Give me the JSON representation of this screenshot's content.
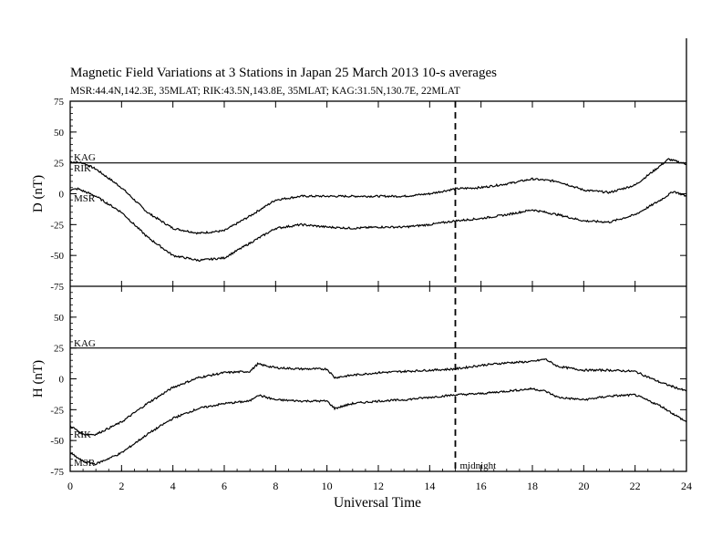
{
  "title": "Magnetic Field Variations at 3 Stations in Japan        25 March   2013      10-s averages",
  "subtitle": "MSR:44.4N,142.3E, 35MLAT;  RIK:43.5N,143.8E, 35MLAT;  KAG:31.5N,130.7E, 22MLAT",
  "chart_data": {
    "type": "line",
    "xlabel": "Universal Time",
    "xlim": [
      0,
      24
    ],
    "xticks": [
      "0",
      "2",
      "4",
      "6",
      "8",
      "10",
      "12",
      "14",
      "16",
      "18",
      "20",
      "22",
      "24"
    ],
    "annotation": {
      "x": 15,
      "label": "midnight"
    },
    "panels": [
      {
        "ylabel": "D (nT)",
        "ylim": [
          -75,
          75
        ],
        "yticks": [
          "75",
          "50",
          "25",
          "0",
          "-25",
          "-50",
          "-75"
        ],
        "series": [
          {
            "name": "KAG",
            "x": [
              0,
              23,
              23.5,
              24
            ],
            "y": [
              25,
              25,
              25,
              25
            ]
          },
          {
            "name": "RIK",
            "x": [
              0,
              0.5,
              1,
              2,
              3,
              4,
              5,
              6,
              7,
              8,
              9,
              10,
              11,
              12,
              13,
              14,
              15,
              16,
              17,
              18,
              19,
              20,
              21,
              22,
              23,
              23.3,
              24
            ],
            "y": [
              26,
              25,
              20,
              5,
              -15,
              -28,
              -32,
              -30,
              -18,
              -5,
              -2,
              -2,
              -2,
              -2,
              -2,
              0,
              4,
              5,
              8,
              12,
              10,
              3,
              1,
              7,
              23,
              28,
              24
            ]
          },
          {
            "name": "MSR",
            "x": [
              0,
              0.3,
              1,
              2,
              3,
              4,
              5,
              6,
              7,
              8,
              9,
              10,
              11,
              12,
              13,
              14,
              15,
              16,
              17,
              18,
              19,
              20,
              21,
              22,
              23,
              23.5,
              24
            ],
            "y": [
              3,
              4,
              -2,
              -15,
              -35,
              -50,
              -54,
              -52,
              -40,
              -28,
              -25,
              -27,
              -28,
              -27,
              -27,
              -25,
              -22,
              -20,
              -17,
              -13,
              -17,
              -22,
              -23,
              -17,
              -5,
              2,
              -2
            ]
          }
        ]
      },
      {
        "ylabel": "H (nT)",
        "ylim": [
          -75,
          75
        ],
        "yticks": [
          "75",
          "50",
          "25",
          "0",
          "-25",
          "-50",
          "-75"
        ],
        "series": [
          {
            "name": "KAG",
            "x": [
              0,
              24
            ],
            "y": [
              25,
              25
            ]
          },
          {
            "name": "RIK",
            "x": [
              0,
              0.5,
              1,
              2,
              3,
              4,
              5,
              6,
              7,
              7.3,
              8,
              9,
              10,
              10.3,
              11,
              12,
              13,
              14,
              15,
              16,
              17,
              18,
              18.5,
              19,
              20,
              21,
              22,
              23,
              24
            ],
            "y": [
              -38,
              -45,
              -45,
              -35,
              -20,
              -7,
              1,
              5,
              6,
              12,
              9,
              8,
              8,
              1,
              3,
              5,
              6,
              7,
              8,
              11,
              13,
              14,
              16,
              10,
              7,
              7,
              6,
              -3,
              -10
            ]
          },
          {
            "name": "MSR",
            "x": [
              0,
              0.5,
              1,
              2,
              3,
              4,
              5,
              6,
              7,
              7.3,
              8,
              9,
              10,
              10.3,
              11,
              12,
              13,
              14,
              15,
              16,
              17,
              18,
              18.5,
              19,
              20,
              21,
              22,
              23,
              24
            ],
            "y": [
              -60,
              -67,
              -69,
              -60,
              -45,
              -32,
              -24,
              -20,
              -18,
              -13,
              -17,
              -18,
              -18,
              -24,
              -20,
              -18,
              -17,
              -15,
              -13,
              -12,
              -10,
              -8,
              -10,
              -15,
              -17,
              -14,
              -13,
              -22,
              -35
            ]
          }
        ]
      }
    ]
  }
}
